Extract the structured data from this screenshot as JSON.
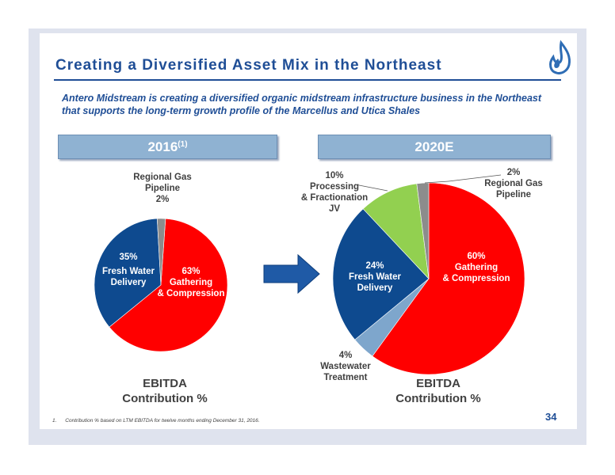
{
  "slide": {
    "title": "Creating a Diversified Asset Mix in the Northeast",
    "subtitle": "Antero Midstream is creating a diversified organic midstream infrastructure business in the Northeast that supports the long-term growth profile of the Marcellus and Utica Shales",
    "footnote_number": "1.",
    "footnote_text": "Contribution % based on LTM EBITDA for twelve months ending December 31, 2016.",
    "page_number": "34"
  },
  "colors": {
    "accent_blue": "#1f4e96",
    "gathering_red": "#ff0000",
    "fresh_water_blue": "#0e4a8f",
    "regional_gray": "#8c8c8c",
    "processing_green": "#92d050",
    "wastewater_lightblue": "#7ea6cc",
    "arrow_blue": "#1f5aa6"
  },
  "left": {
    "banner": "2016",
    "banner_sup": "(1)",
    "caption_line1": "EBITDA",
    "caption_line2": "Contribution %",
    "labels": {
      "regional_l1": "Regional Gas",
      "regional_l2": "Pipeline",
      "regional_pct": "2%",
      "fresh_pct": "35%",
      "fresh_l1": "Fresh Water",
      "fresh_l2": "Delivery",
      "gath_pct": "63%",
      "gath_l1": "Gathering",
      "gath_l2": "& Compression"
    }
  },
  "right": {
    "banner": "2020E",
    "caption_line1": "EBITDA",
    "caption_line2": "Contribution %",
    "labels": {
      "proc_pct": "10%",
      "proc_l1": "Processing",
      "proc_l2": "& Fractionation",
      "proc_l3": "JV",
      "regional_pct": "2%",
      "regional_l1": "Regional Gas",
      "regional_l2": "Pipeline",
      "fresh_pct": "24%",
      "fresh_l1": "Fresh Water",
      "fresh_l2": "Delivery",
      "gath_pct": "60%",
      "gath_l1": "Gathering",
      "gath_l2": "& Compression",
      "ww_pct": "4%",
      "ww_l1": "Wastewater",
      "ww_l2": "Treatment"
    }
  },
  "chart_data": [
    {
      "type": "pie",
      "title": "2016",
      "caption": "EBITDA Contribution %",
      "slices": [
        {
          "label": "Gathering & Compression",
          "value": 63,
          "color": "#ff0000"
        },
        {
          "label": "Fresh Water Delivery",
          "value": 35,
          "color": "#0e4a8f"
        },
        {
          "label": "Regional Gas Pipeline",
          "value": 2,
          "color": "#8c8c8c"
        }
      ]
    },
    {
      "type": "pie",
      "title": "2020E",
      "caption": "EBITDA Contribution %",
      "slices": [
        {
          "label": "Gathering & Compression",
          "value": 60,
          "color": "#ff0000"
        },
        {
          "label": "Wastewater Treatment",
          "value": 4,
          "color": "#7ea6cc"
        },
        {
          "label": "Fresh Water Delivery",
          "value": 24,
          "color": "#0e4a8f"
        },
        {
          "label": "Processing & Fractionation JV",
          "value": 10,
          "color": "#92d050"
        },
        {
          "label": "Regional Gas Pipeline",
          "value": 2,
          "color": "#8c8c8c"
        }
      ]
    }
  ]
}
